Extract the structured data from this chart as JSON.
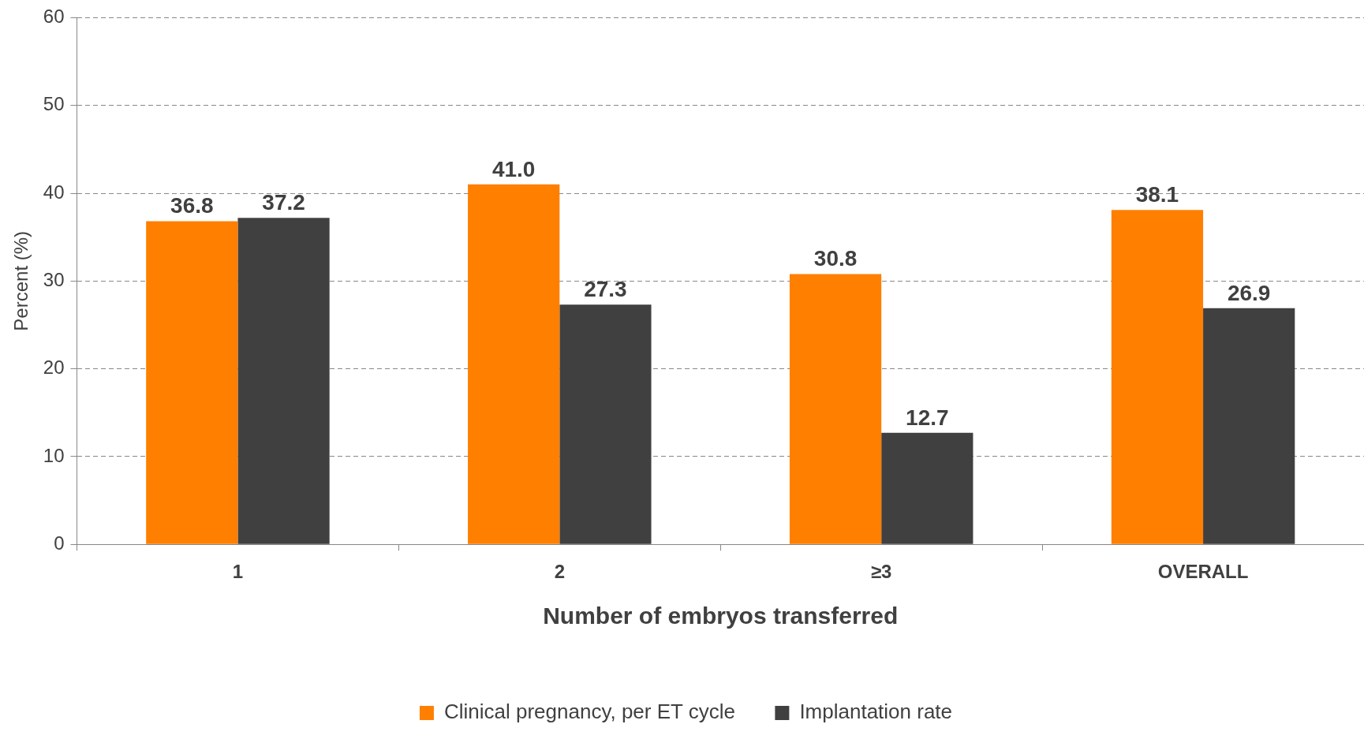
{
  "chart_data": {
    "type": "bar",
    "xlabel": "Number of embryos transferred",
    "ylabel": "Percent (%)",
    "categories": [
      "1",
      "2",
      "≥3",
      "OVERALL"
    ],
    "series": [
      {
        "name": "Clinical pregnancy, per ET cycle",
        "color": "#ff7f00",
        "values": [
          36.8,
          41.0,
          30.8,
          38.1
        ],
        "value_labels": [
          "36.8",
          "41.0",
          "30.8",
          "38.1"
        ]
      },
      {
        "name": "Implantation rate",
        "color": "#404040",
        "values": [
          37.2,
          27.3,
          12.7,
          26.9
        ],
        "value_labels": [
          "37.2",
          "27.3",
          "12.7",
          "26.9"
        ]
      }
    ],
    "ylim": [
      0,
      60
    ],
    "yticks": [
      0,
      10,
      20,
      30,
      40,
      50,
      60
    ],
    "grid": "y",
    "legend": "bottom"
  }
}
